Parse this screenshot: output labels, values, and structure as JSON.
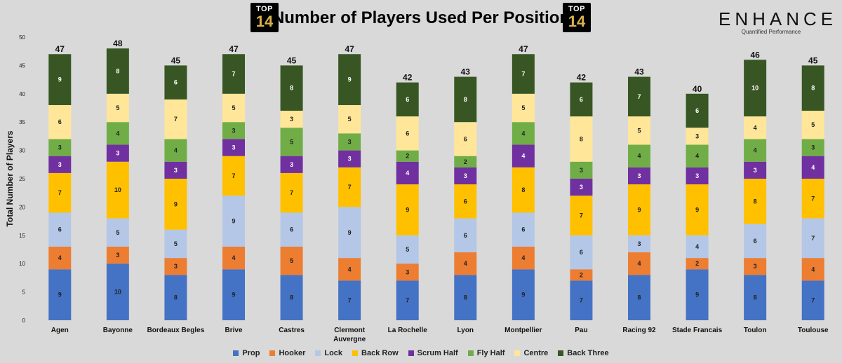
{
  "chart_data": {
    "type": "bar",
    "stacked": true,
    "title": "Number of Players Used Per Position",
    "xlabel": "",
    "ylabel": "Total Number of Players",
    "ylim": [
      0,
      50
    ],
    "yticks": [
      "0",
      "5",
      "10",
      "15",
      "20",
      "25",
      "30",
      "35",
      "40",
      "45",
      "50"
    ],
    "categories": [
      "Agen",
      "Bayonne",
      "Bordeaux Begles",
      "Brive",
      "Castres",
      "Clermont Auvergne",
      "La Rochelle",
      "Lyon",
      "Montpellier",
      "Pau",
      "Racing 92",
      "Stade Francais",
      "Toulon",
      "Toulouse"
    ],
    "totals": [
      47,
      48,
      45,
      47,
      45,
      47,
      42,
      43,
      47,
      42,
      43,
      40,
      46,
      45
    ],
    "series": [
      {
        "name": "Prop",
        "color": "#4472c4",
        "values": [
          9,
          10,
          8,
          9,
          8,
          7,
          7,
          8,
          9,
          7,
          8,
          9,
          8,
          7
        ]
      },
      {
        "name": "Hooker",
        "color": "#ed7d31",
        "values": [
          4,
          3,
          3,
          4,
          5,
          4,
          3,
          4,
          4,
          2,
          4,
          2,
          3,
          4
        ]
      },
      {
        "name": "Lock",
        "color": "#b4c7e7",
        "values": [
          6,
          5,
          5,
          9,
          6,
          9,
          5,
          6,
          6,
          6,
          3,
          4,
          6,
          7
        ]
      },
      {
        "name": "Back Row",
        "color": "#ffc000",
        "values": [
          7,
          10,
          9,
          7,
          7,
          7,
          9,
          6,
          8,
          7,
          9,
          9,
          8,
          7
        ]
      },
      {
        "name": "Scrum Half",
        "color": "#7030a0",
        "values": [
          3,
          3,
          3,
          3,
          3,
          3,
          4,
          3,
          4,
          3,
          3,
          3,
          3,
          4
        ]
      },
      {
        "name": "Fly Half",
        "color": "#70ad47",
        "values": [
          3,
          4,
          4,
          3,
          5,
          3,
          2,
          2,
          4,
          3,
          4,
          4,
          4,
          3
        ]
      },
      {
        "name": "Centre",
        "color": "#ffe699",
        "values": [
          6,
          5,
          7,
          5,
          3,
          5,
          6,
          6,
          5,
          8,
          5,
          3,
          4,
          5
        ]
      },
      {
        "name": "Back Three",
        "color": "#375623",
        "values": [
          9,
          8,
          6,
          7,
          8,
          9,
          6,
          8,
          7,
          6,
          7,
          6,
          10,
          8
        ]
      }
    ]
  },
  "header": {
    "logo_top_text": "TOP",
    "logo_num_text": "14",
    "brand_name": "ENHANCE",
    "brand_tagline": "Quantified Performance"
  }
}
